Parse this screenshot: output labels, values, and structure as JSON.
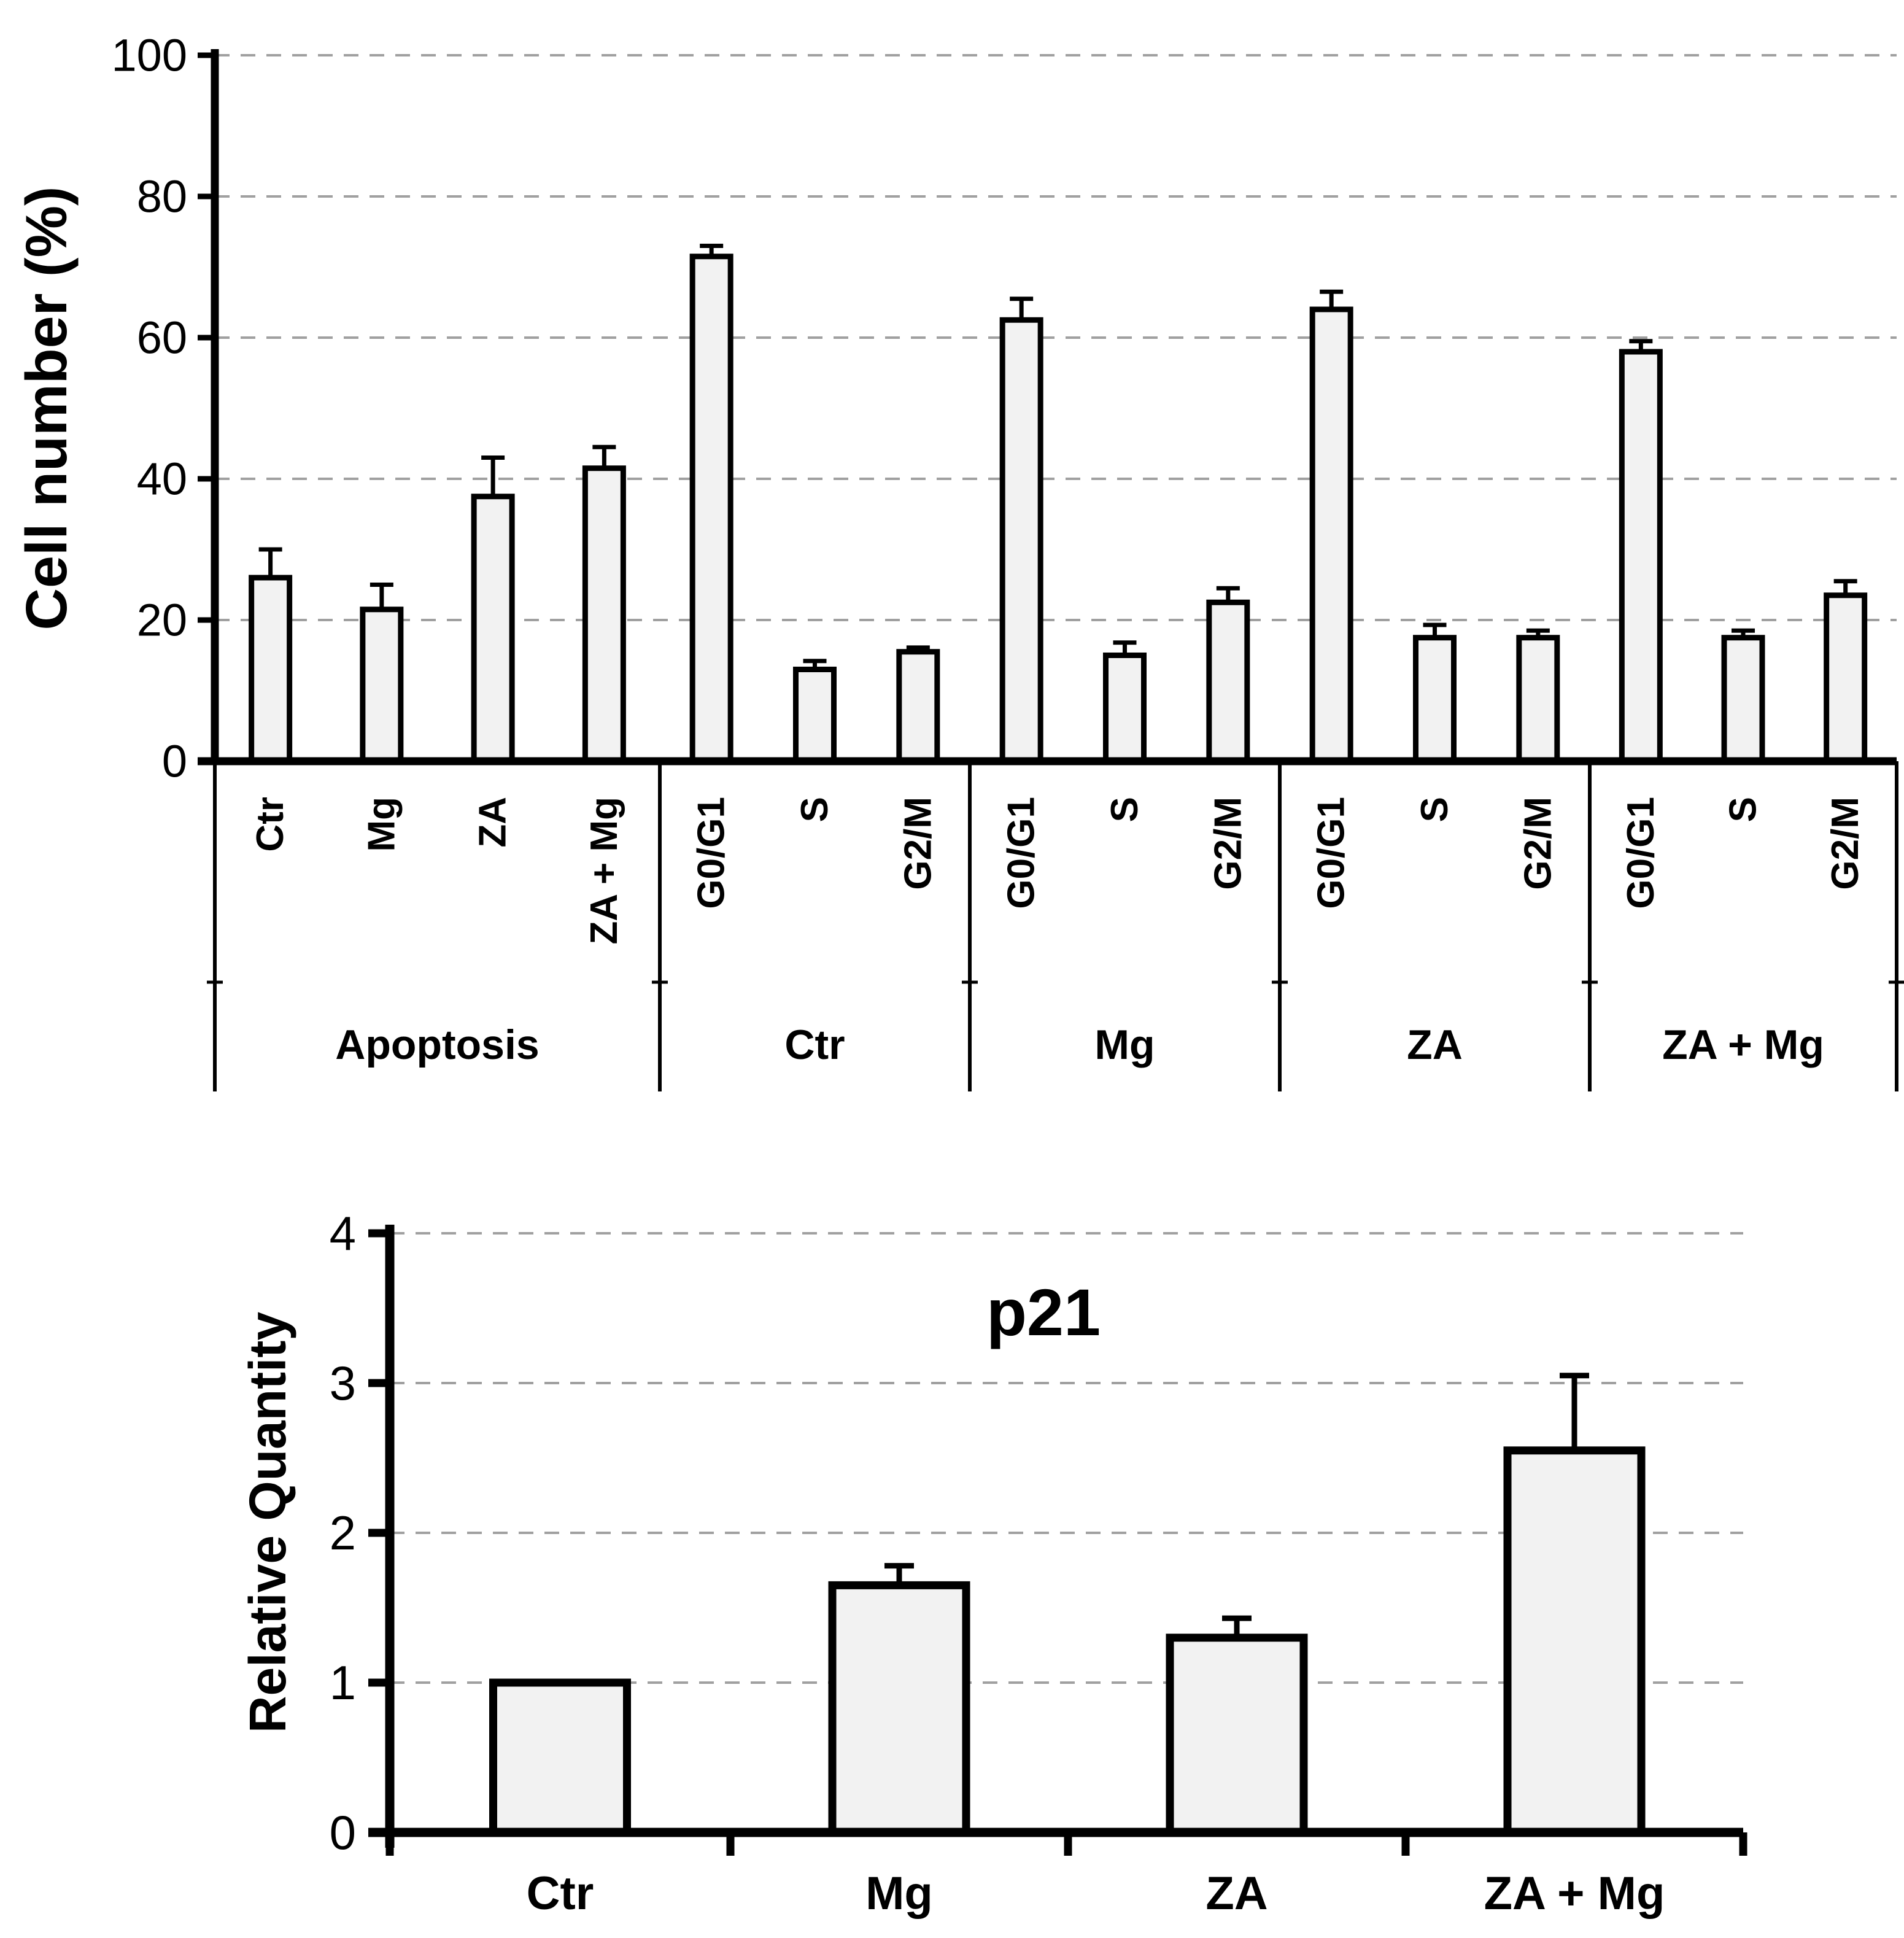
{
  "figure": {
    "background": "#ffffff",
    "colors": {
      "bar_fill": "#f2f2f2",
      "bar_stroke": "#000000",
      "grid": "#a0a0a0",
      "axis": "#000000",
      "text": "#000000"
    }
  },
  "chart_data": [
    {
      "type": "bar",
      "title": "",
      "ylabel": "Cell number (%)",
      "xlabel": "",
      "ylim": [
        0,
        100
      ],
      "yticks": [
        0,
        20,
        40,
        60,
        80,
        100
      ],
      "grid": true,
      "legend_position": "none",
      "error_bars": "plus-direction",
      "groups": [
        {
          "label": "Apoptosis",
          "bars": [
            {
              "label": "Ctr",
              "value": 26,
              "error": 4
            },
            {
              "label": "Mg",
              "value": 21.5,
              "error": 3.5
            },
            {
              "label": "ZA",
              "value": 37.5,
              "error": 5.5
            },
            {
              "label": "ZA + Mg",
              "value": 41.5,
              "error": 3
            }
          ]
        },
        {
          "label": "Ctr",
          "bars": [
            {
              "label": "G0/G1",
              "value": 71.5,
              "error": 1.5
            },
            {
              "label": "S",
              "value": 13,
              "error": 1.2
            },
            {
              "label": "G2/M",
              "value": 15.5,
              "error": 0.6
            }
          ]
        },
        {
          "label": "Mg",
          "bars": [
            {
              "label": "G0/G1",
              "value": 62.5,
              "error": 3
            },
            {
              "label": "S",
              "value": 15,
              "error": 1.8
            },
            {
              "label": "G2/M",
              "value": 22.5,
              "error": 2
            }
          ]
        },
        {
          "label": "ZA",
          "bars": [
            {
              "label": "G0/G1",
              "value": 64,
              "error": 2.5
            },
            {
              "label": "S",
              "value": 17.5,
              "error": 1.8
            },
            {
              "label": "G2/M",
              "value": 17.5,
              "error": 1
            }
          ]
        },
        {
          "label": "ZA + Mg",
          "bars": [
            {
              "label": "G0/G1",
              "value": 58,
              "error": 1.5
            },
            {
              "label": "S",
              "value": 17.5,
              "error": 1
            },
            {
              "label": "G2/M",
              "value": 23.5,
              "error": 2
            }
          ]
        }
      ]
    },
    {
      "type": "bar",
      "title": "p21",
      "ylabel": "Relative Quantity",
      "xlabel": "",
      "ylim": [
        0,
        4
      ],
      "yticks": [
        0,
        1,
        2,
        3,
        4
      ],
      "grid": true,
      "legend_position": "none",
      "error_bars": "plus-direction",
      "categories": [
        "Ctr",
        "Mg",
        "ZA",
        "ZA + Mg"
      ],
      "values": [
        1.0,
        1.65,
        1.3,
        2.55
      ],
      "errors": [
        0,
        0.13,
        0.13,
        0.5
      ]
    }
  ]
}
